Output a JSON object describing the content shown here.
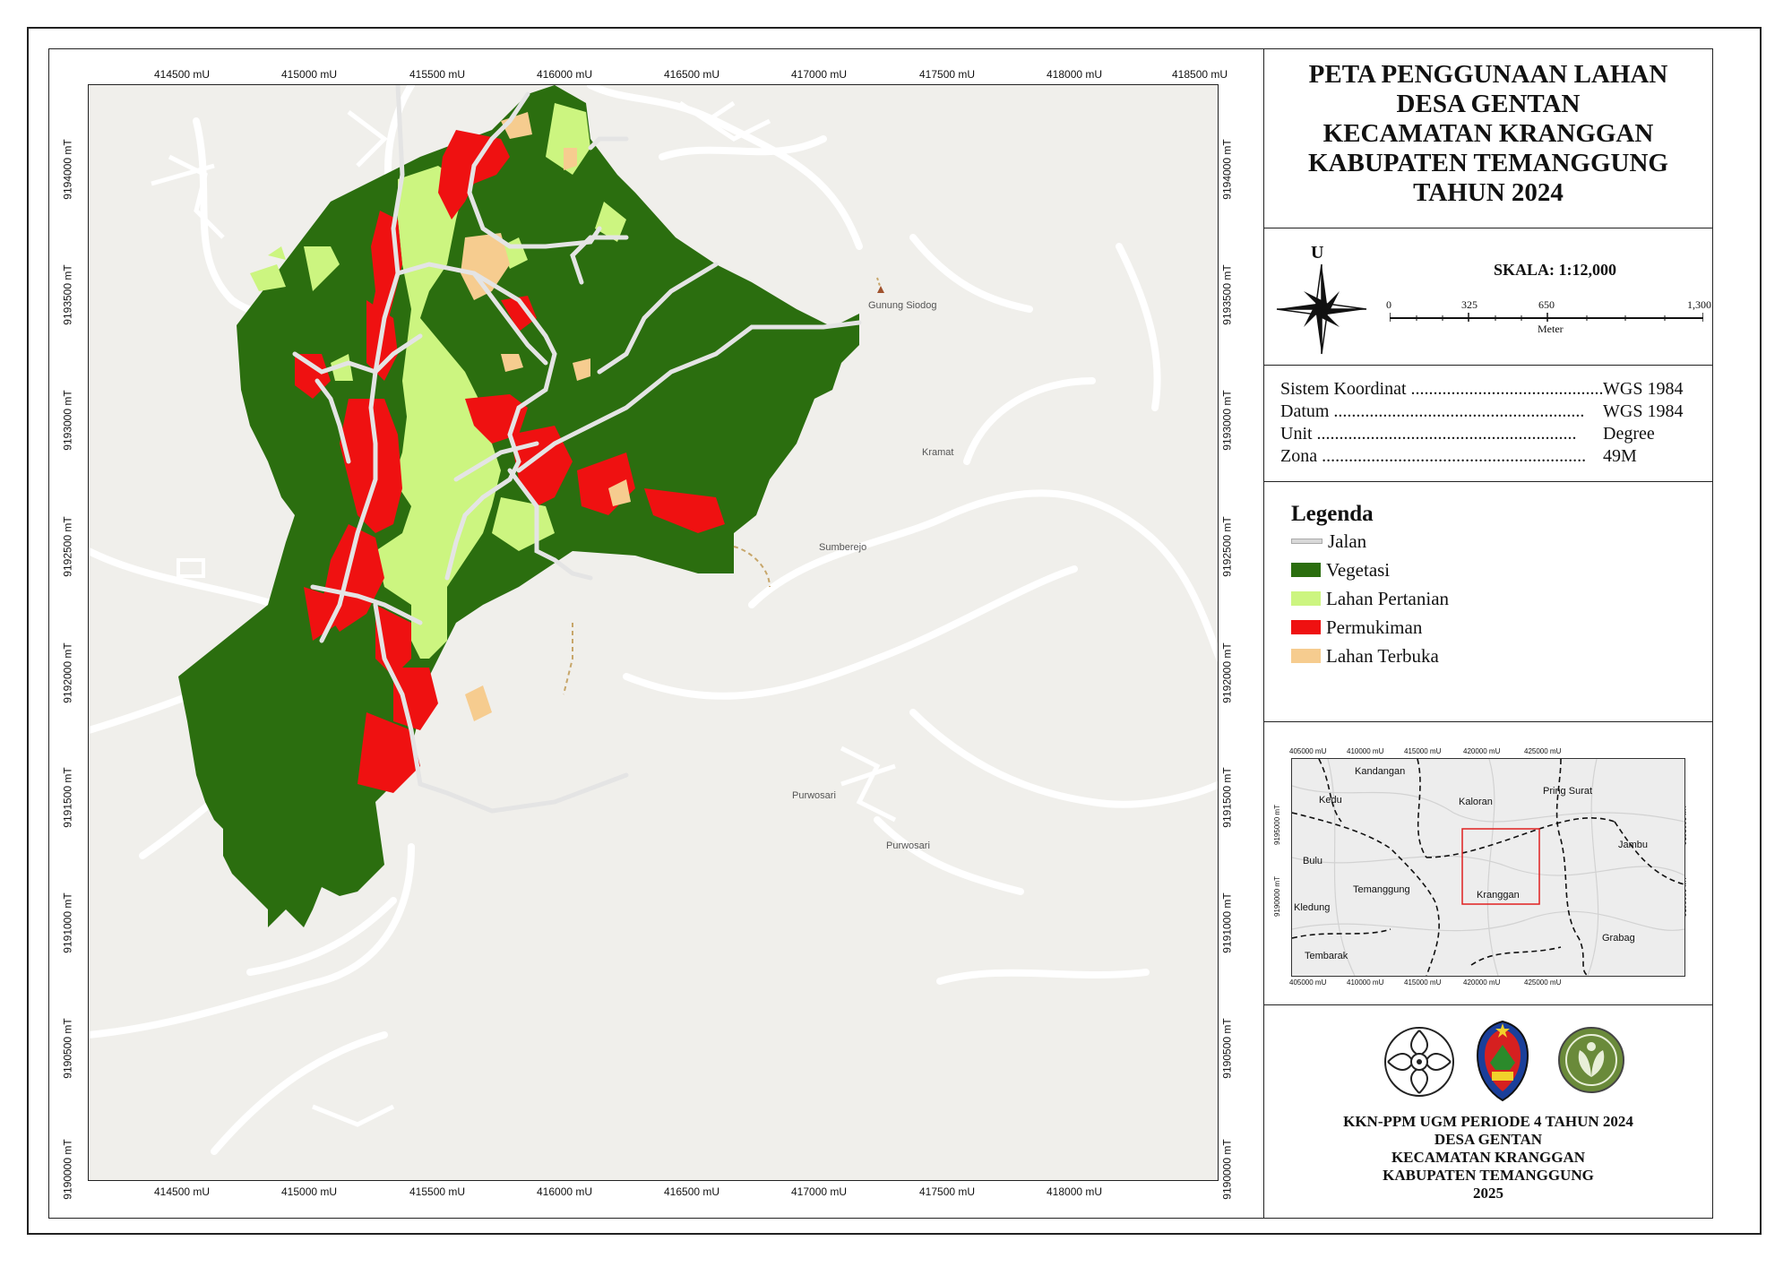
{
  "title_lines": [
    "PETA PENGGUNAAN LAHAN",
    "DESA GENTAN",
    "KECAMATAN KRANGGAN",
    "KABUPATEN TEMANGGUNG",
    "TAHUN 2024"
  ],
  "north_label": "U",
  "scale": {
    "label": "SKALA: 1:12,000",
    "ticks": [
      "0",
      "325",
      "650",
      "1,300"
    ],
    "unit": "Meter"
  },
  "info": [
    {
      "label": "Sistem Koordinat ...........................................",
      "value": "WGS 1984"
    },
    {
      "label": "Datum ........................................................",
      "value": "WGS 1984"
    },
    {
      "label": "Unit ..........................................................",
      "value": "Degree"
    },
    {
      "label": "Zona ...........................................................",
      "value": "49M"
    }
  ],
  "legend": {
    "title": "Legenda",
    "items": [
      {
        "label": "Jalan",
        "color": "#e0e0e0"
      },
      {
        "label": "Vegetasi",
        "color": "#2b6e0f"
      },
      {
        "label": "Lahan Pertanian",
        "color": "#ccf580"
      },
      {
        "label": "Permukiman",
        "color": "#ef1111"
      },
      {
        "label": "Lahan Terbuka",
        "color": "#f6cc8f"
      }
    ]
  },
  "map_coords": {
    "x": [
      "414500 mU",
      "415000 mU",
      "415500 mU",
      "416000 mU",
      "416500 mU",
      "417000 mU",
      "417500 mU",
      "418000 mU",
      "418500 mU"
    ],
    "y": [
      "9194000 mT",
      "9193500 mT",
      "9193000 mT",
      "9192500 mT",
      "9192000 mT",
      "9191500 mT",
      "9191000 mT",
      "9190500 mT",
      "9190000 mT"
    ]
  },
  "map_places": [
    "Gunung Siodog",
    "Kramat",
    "Sumberejo",
    "Purwosari",
    "Purwosari"
  ],
  "inset": {
    "x": [
      "405000 mU",
      "410000 mU",
      "415000 mU",
      "420000 mU",
      "425000 mU"
    ],
    "y": [
      "9195000 mT",
      "9190000 mT"
    ],
    "places": [
      "Kandangan",
      "Kedu",
      "Kaloran",
      "Pring Surat",
      "Bulu",
      "Jambu",
      "Temanggung",
      "Kranggan",
      "Kledung",
      "Grabag",
      "Tembarak"
    ]
  },
  "footer_lines": [
    "KKN-PPM UGM PERIODE 4 TAHUN 2024",
    "DESA GENTAN",
    "KECAMATAN KRANGGAN",
    "KABUPATEN TEMANGGUNG",
    "2025"
  ],
  "colors": {
    "vegetasi": "#2b6e0f",
    "pertanian": "#ccf580",
    "permukiman": "#ef1111",
    "terbuka": "#f6cc8f",
    "jalan": "#ffffff"
  }
}
